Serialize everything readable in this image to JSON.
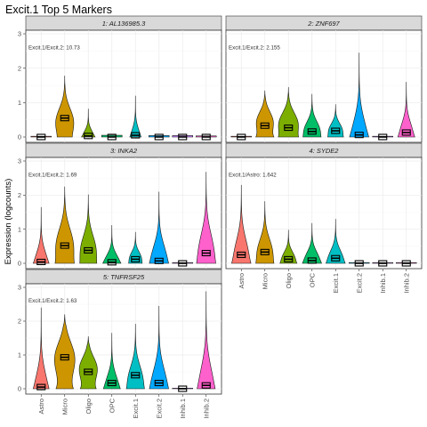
{
  "chart_data": {
    "type": "violin",
    "title": "Excit.1 Top 5 Markers",
    "ylabel": "Expression (logcounts)",
    "ylim": [
      0,
      3
    ],
    "yticks": [
      0,
      1,
      2,
      3
    ],
    "categories": [
      "Astro",
      "Micro",
      "Oligo",
      "OPC",
      "Excit.1",
      "Excit.2",
      "Inhib.1",
      "Inhib.2"
    ],
    "colors": {
      "Astro": "#F8766D",
      "Micro": "#CD9600",
      "Oligo": "#7CAE00",
      "OPC": "#00BE67",
      "Excit.1": "#00BFC4",
      "Excit.2": "#00A9FF",
      "Inhib.1": "#C77CFF",
      "Inhib.2": "#FF61CC"
    },
    "panels": [
      {
        "strip": "1: AL136985.3",
        "annotation": "Excit.1/Excit.2: 10.73",
        "max": [
          0.02,
          1.78,
          0.82,
          0.05,
          1.2,
          0.04,
          0.04,
          0.03
        ],
        "mean": [
          0.0,
          0.55,
          0.03,
          0.0,
          0.05,
          0.0,
          0.0,
          0.0
        ],
        "peak": [
          0.02,
          0.45,
          0.05,
          0.02,
          0.03,
          0.02,
          0.02,
          0.02
        ],
        "width": [
          0.9,
          0.8,
          0.6,
          0.9,
          0.5,
          0.9,
          0.9,
          0.9
        ],
        "base": [
          0,
          0.35,
          0.8,
          0,
          0.7,
          0,
          0,
          0
        ]
      },
      {
        "strip": "2: ZNF697",
        "annotation": "Excit.1/Excit.2: 2.155",
        "max": [
          0.02,
          1.35,
          1.45,
          1.25,
          0.95,
          2.45,
          0.02,
          1.6
        ],
        "mean": [
          0.0,
          0.33,
          0.27,
          0.16,
          0.18,
          0.06,
          0.0,
          0.13
        ],
        "peak": [
          0.02,
          0.45,
          0.4,
          0.2,
          0.2,
          0.1,
          0.02,
          0.15
        ],
        "width": [
          0.9,
          0.8,
          0.9,
          0.8,
          0.7,
          0.85,
          0.9,
          0.75
        ],
        "base": [
          0,
          0.7,
          0.6,
          0.5,
          0.6,
          0.8,
          0,
          0.8
        ]
      },
      {
        "strip": "3: INKA2",
        "annotation": "Excit.1/Excit.2: 1.69",
        "max": [
          1.65,
          2.25,
          2.02,
          1.12,
          0.92,
          2.1,
          0.02,
          2.68
        ],
        "mean": [
          0.04,
          0.52,
          0.38,
          0.03,
          0.12,
          0.07,
          0.0,
          0.3
        ],
        "peak": [
          0.05,
          0.55,
          0.4,
          0.05,
          0.15,
          0.15,
          0.02,
          0.35
        ],
        "width": [
          0.7,
          0.85,
          0.75,
          0.8,
          0.6,
          0.85,
          0.9,
          0.85
        ],
        "base": [
          0.7,
          0.6,
          0.5,
          0.6,
          0.5,
          0.6,
          0,
          0.6
        ]
      },
      {
        "strip": "4: SYDE2",
        "annotation": "Excit.1/Astro: 1.642",
        "max": [
          2.3,
          1.82,
          0.98,
          1.18,
          1.3,
          0.02,
          0.02,
          0.02
        ],
        "mean": [
          0.25,
          0.33,
          0.12,
          0.08,
          0.15,
          0.0,
          0.0,
          0.0
        ],
        "peak": [
          0.3,
          0.35,
          0.15,
          0.12,
          0.15,
          0.02,
          0.02,
          0.02
        ],
        "width": [
          0.85,
          0.8,
          0.75,
          0.85,
          0.85,
          0.9,
          0.9,
          0.9
        ],
        "base": [
          0.8,
          0.6,
          0.7,
          0.7,
          0.7,
          0,
          0,
          0
        ]
      },
      {
        "strip": "5: TNFRSF25",
        "annotation": "Excit.1/Excit.2: 1.63",
        "max": [
          2.4,
          2.2,
          1.55,
          1.65,
          1.92,
          2.45,
          0.02,
          2.88
        ],
        "mean": [
          0.05,
          0.93,
          0.5,
          0.17,
          0.4,
          0.17,
          0.0,
          0.1
        ],
        "peak": [
          0.05,
          0.9,
          0.6,
          0.1,
          0.3,
          0.15,
          0.02,
          0.15
        ],
        "width": [
          0.7,
          0.9,
          0.8,
          0.75,
          0.8,
          0.85,
          0.9,
          0.8
        ],
        "base": [
          0.7,
          0.6,
          0.6,
          0.7,
          0.6,
          0.6,
          0,
          0.7
        ]
      }
    ]
  }
}
